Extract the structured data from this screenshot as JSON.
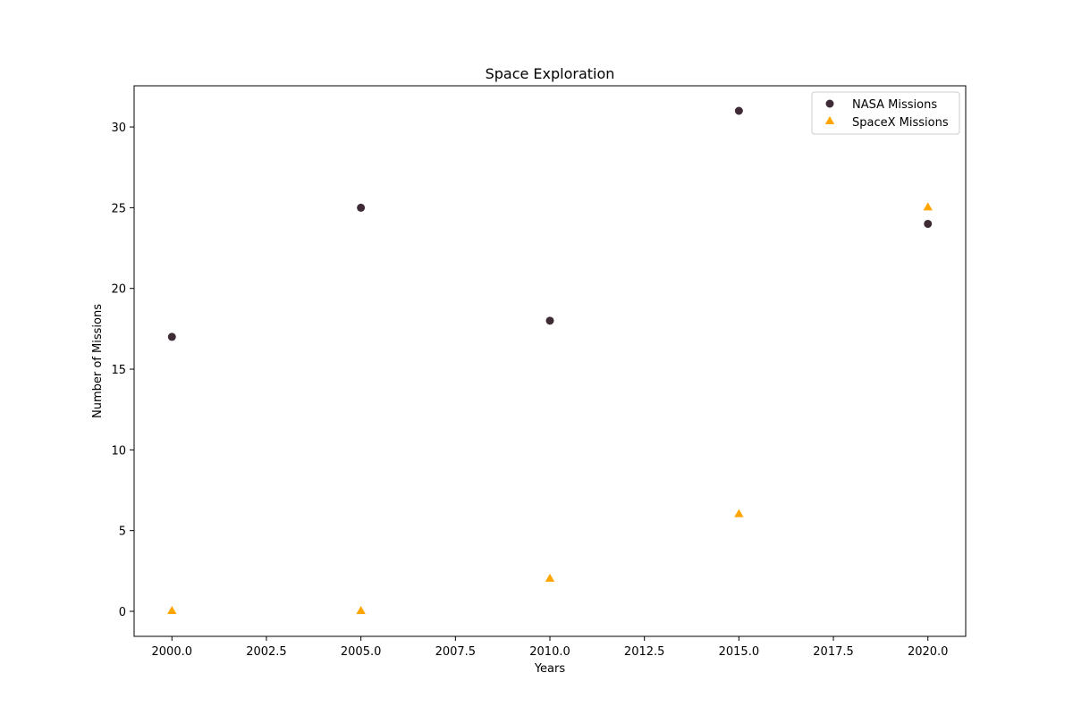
{
  "chart_data": {
    "type": "scatter",
    "title": "Space Exploration",
    "xlabel": "Years",
    "ylabel": "Number of Missions",
    "x": [
      2000,
      2005,
      2010,
      2015,
      2020
    ],
    "series": [
      {
        "name": "NASA Missions",
        "marker": "circle",
        "color": "#3f2b36",
        "values": [
          17,
          25,
          18,
          31,
          24
        ]
      },
      {
        "name": "SpaceX Missions",
        "marker": "triangle",
        "color": "#ffa500",
        "values": [
          0,
          0,
          2,
          6,
          25
        ]
      }
    ],
    "xlim": [
      1999,
      2021
    ],
    "ylim": [
      -1.55,
      32.55
    ],
    "xticks": [
      "2000.0",
      "2002.5",
      "2005.0",
      "2007.5",
      "2010.0",
      "2012.5",
      "2015.0",
      "2017.5",
      "2020.0"
    ],
    "yticks": [
      "0",
      "5",
      "10",
      "15",
      "20",
      "25",
      "30"
    ],
    "grid": false,
    "legend_position": "top-right"
  }
}
